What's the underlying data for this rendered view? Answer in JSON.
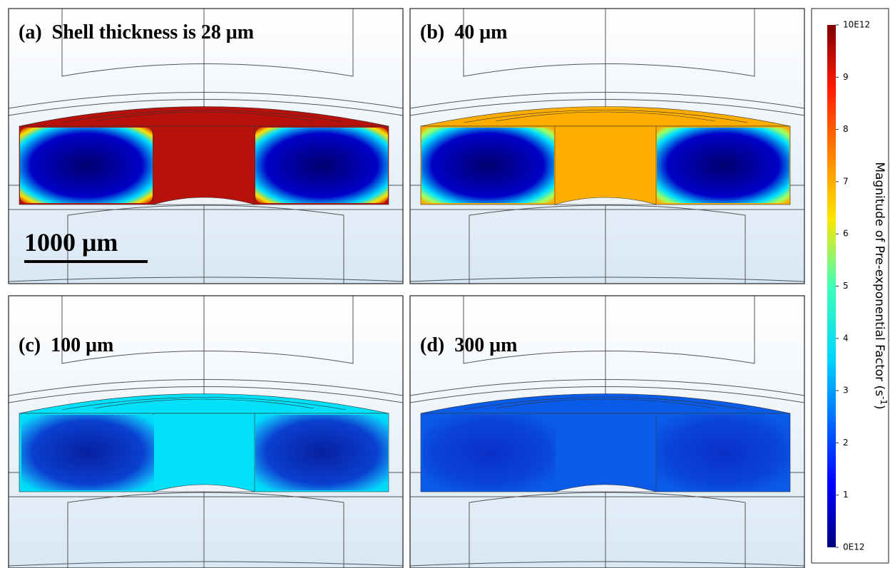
{
  "panels": [
    {
      "tag": "(a)",
      "caption": "Shell thickness is 28 μm"
    },
    {
      "tag": "(b)",
      "caption": "40 μm"
    },
    {
      "tag": "(c)",
      "caption": "100 μm"
    },
    {
      "tag": "(d)",
      "caption": "300 μm"
    }
  ],
  "scale_bar": "1000 μm",
  "colorbar": {
    "title": "Magnitude of Pre-exponential Factor (s",
    "title_sup": "-1",
    "title_end": ")",
    "lim": [
      0,
      10
    ],
    "ticks": [
      {
        "value": 0,
        "label": "0E12"
      },
      1,
      2,
      3,
      4,
      5,
      6,
      7,
      8,
      9,
      {
        "value": 10,
        "label": "10E12"
      }
    ]
  }
}
